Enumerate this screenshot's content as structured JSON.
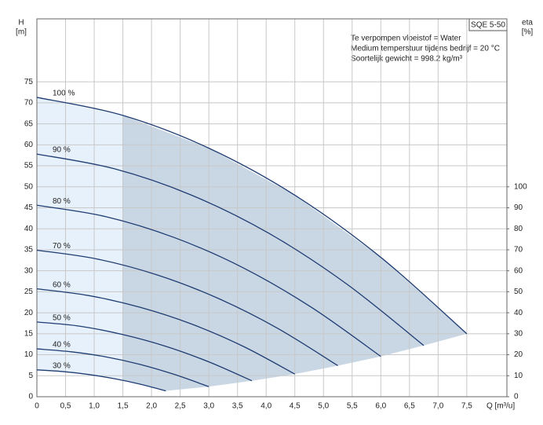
{
  "chart_data": {
    "type": "line",
    "title": "SQE 5-50",
    "annotations": [
      "Te verpompen vloeistof = Water",
      "Medium temperstuur tijdens bedrijf = 20 °C",
      "Soortelijk gewicht = 998.2 kg/m³"
    ],
    "x_label": "Q [m³/u]",
    "y_label": "H",
    "y_unit": "[m]",
    "y2_label": "eta",
    "y2_unit": "[%]",
    "xlim": [
      0,
      8.2
    ],
    "xticks": [
      0,
      {
        "value": 0.5,
        "label": "0,5"
      },
      {
        "value": 1,
        "label": "1,0"
      },
      {
        "value": 1.5,
        "label": "1,5"
      },
      {
        "value": 2,
        "label": "2,0"
      },
      {
        "value": 2.5,
        "label": "2,5"
      },
      {
        "value": 3,
        "label": "3,0"
      },
      {
        "value": 3.5,
        "label": "3,5"
      },
      {
        "value": 4,
        "label": "4,0"
      },
      {
        "value": 4.5,
        "label": "4,5"
      },
      {
        "value": 5,
        "label": "5,0"
      },
      {
        "value": 5.5,
        "label": "5,5"
      },
      {
        "value": 6,
        "label": "6,0"
      },
      {
        "value": 6.5,
        "label": "6,5"
      },
      {
        "value": 7,
        "label": "7,0"
      },
      {
        "value": 7.5,
        "label": "7,5"
      }
    ],
    "ylim": [
      0,
      90
    ],
    "yticks": [
      0,
      5,
      10,
      15,
      20,
      25,
      30,
      35,
      40,
      45,
      50,
      55,
      60,
      65,
      70,
      75
    ],
    "y2lim": [
      0,
      180
    ],
    "y2ticks": [
      0,
      10,
      20,
      30,
      40,
      50,
      60,
      70,
      80,
      90,
      100
    ],
    "grid": true,
    "series": [
      {
        "name": "100 %",
        "color": "#1f3d73",
        "x": [
          0,
          1.5,
          3,
          4.5,
          6,
          7.5
        ],
        "values": [
          71.3,
          67.0,
          59.2,
          48.0,
          33.2,
          15.0
        ]
      },
      {
        "name": "90 %",
        "color": "#1f3d73",
        "x": [
          0,
          1.35,
          2.7,
          4.05,
          5.4,
          6.75
        ],
        "values": [
          57.8,
          54.3,
          48.0,
          38.9,
          26.9,
          12.2
        ]
      },
      {
        "name": "80 %",
        "color": "#1f3d73",
        "x": [
          0,
          1.2,
          2.4,
          3.6,
          4.8,
          6.0
        ],
        "values": [
          45.6,
          42.9,
          37.9,
          30.7,
          21.2,
          9.6
        ]
      },
      {
        "name": "70 %",
        "color": "#1f3d73",
        "x": [
          0,
          1.05,
          2.1,
          3.15,
          4.2,
          5.25
        ],
        "values": [
          34.9,
          32.8,
          29.0,
          23.5,
          16.3,
          7.4
        ]
      },
      {
        "name": "60 %",
        "color": "#1f3d73",
        "x": [
          0,
          0.9,
          1.8,
          2.7,
          3.6,
          4.5
        ],
        "values": [
          25.7,
          24.1,
          21.3,
          17.3,
          12.0,
          5.4
        ]
      },
      {
        "name": "50 %",
        "color": "#1f3d73",
        "x": [
          0,
          0.75,
          1.5,
          2.25,
          3.0,
          3.75
        ],
        "values": [
          17.8,
          16.8,
          14.8,
          12.0,
          8.3,
          3.8
        ]
      },
      {
        "name": "40 %",
        "color": "#1f3d73",
        "x": [
          0,
          0.6,
          1.2,
          1.8,
          2.4,
          3.0
        ],
        "values": [
          11.4,
          10.7,
          9.5,
          7.7,
          5.3,
          2.4
        ]
      },
      {
        "name": "30 %",
        "color": "#1f3d73",
        "x": [
          0,
          0.45,
          0.9,
          1.35,
          1.8,
          2.25
        ],
        "values": [
          6.4,
          6.0,
          5.3,
          4.3,
          3.0,
          1.4
        ]
      }
    ]
  }
}
